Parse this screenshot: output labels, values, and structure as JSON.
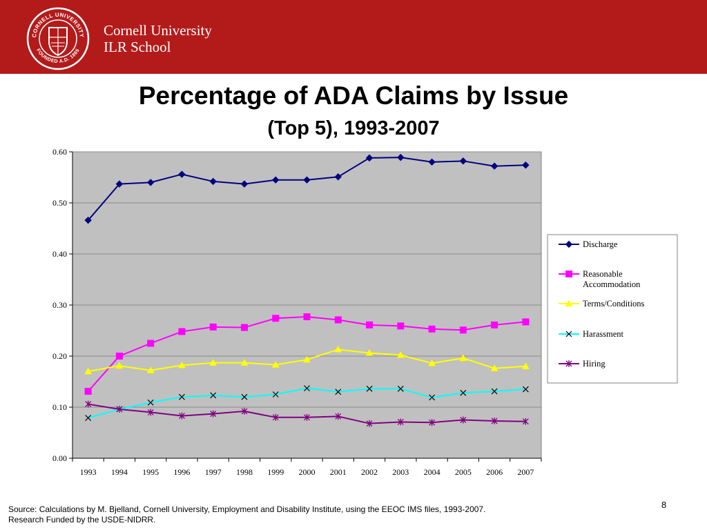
{
  "header": {
    "university": "Cornell University",
    "school": "ILR School",
    "seal_top_text": "CORNELL UNIVERSITY",
    "seal_bottom_text": "FOUNDED A.D. 1865"
  },
  "chart_data": {
    "type": "line",
    "title": "Percentage of ADA Claims by Issue",
    "subtitle": "(Top 5), 1993-2007",
    "categories": [
      "1993",
      "1994",
      "1995",
      "1996",
      "1997",
      "1998",
      "1999",
      "2000",
      "2001",
      "2002",
      "2003",
      "2004",
      "2005",
      "2006",
      "2007"
    ],
    "ylim": [
      0,
      0.6
    ],
    "yticks": [
      "0.00",
      "0.10",
      "0.20",
      "0.30",
      "0.40",
      "0.50",
      "0.60"
    ],
    "grid": true,
    "legend_position": "right",
    "plot_background": "#c0c0c0",
    "series": [
      {
        "name": "Discharge",
        "color": "#000080",
        "marker": "diamond",
        "values": [
          0.466,
          0.537,
          0.54,
          0.556,
          0.542,
          0.537,
          0.545,
          0.545,
          0.551,
          0.588,
          0.589,
          0.58,
          0.582,
          0.572,
          0.574
        ]
      },
      {
        "name": "Reasonable Accommodation",
        "color": "#ff00ff",
        "marker": "square",
        "values": [
          0.131,
          0.2,
          0.225,
          0.248,
          0.257,
          0.256,
          0.274,
          0.277,
          0.271,
          0.261,
          0.259,
          0.253,
          0.251,
          0.261,
          0.267
        ]
      },
      {
        "name": "Terms/Conditions",
        "color": "#ffff00",
        "marker": "triangle",
        "values": [
          0.17,
          0.181,
          0.172,
          0.182,
          0.187,
          0.187,
          0.183,
          0.193,
          0.213,
          0.206,
          0.202,
          0.186,
          0.196,
          0.176,
          0.18
        ]
      },
      {
        "name": "Harassment",
        "color": "#00ffff",
        "marker": "x",
        "values": [
          0.079,
          0.096,
          0.109,
          0.12,
          0.123,
          0.12,
          0.125,
          0.137,
          0.13,
          0.136,
          0.136,
          0.119,
          0.128,
          0.131,
          0.135
        ]
      },
      {
        "name": "Hiring",
        "color": "#800080",
        "marker": "star",
        "values": [
          0.106,
          0.096,
          0.09,
          0.083,
          0.087,
          0.092,
          0.08,
          0.08,
          0.082,
          0.068,
          0.071,
          0.07,
          0.075,
          0.073,
          0.072
        ]
      }
    ]
  },
  "footer": {
    "source_line1": "Source: Calculations by M. Bjelland, Cornell University, Employment and Disability Institute, using the EEOC IMS files, 1993-2007.",
    "source_line2": "Research Funded by the USDE-NIDRR.",
    "page_number": "8"
  }
}
